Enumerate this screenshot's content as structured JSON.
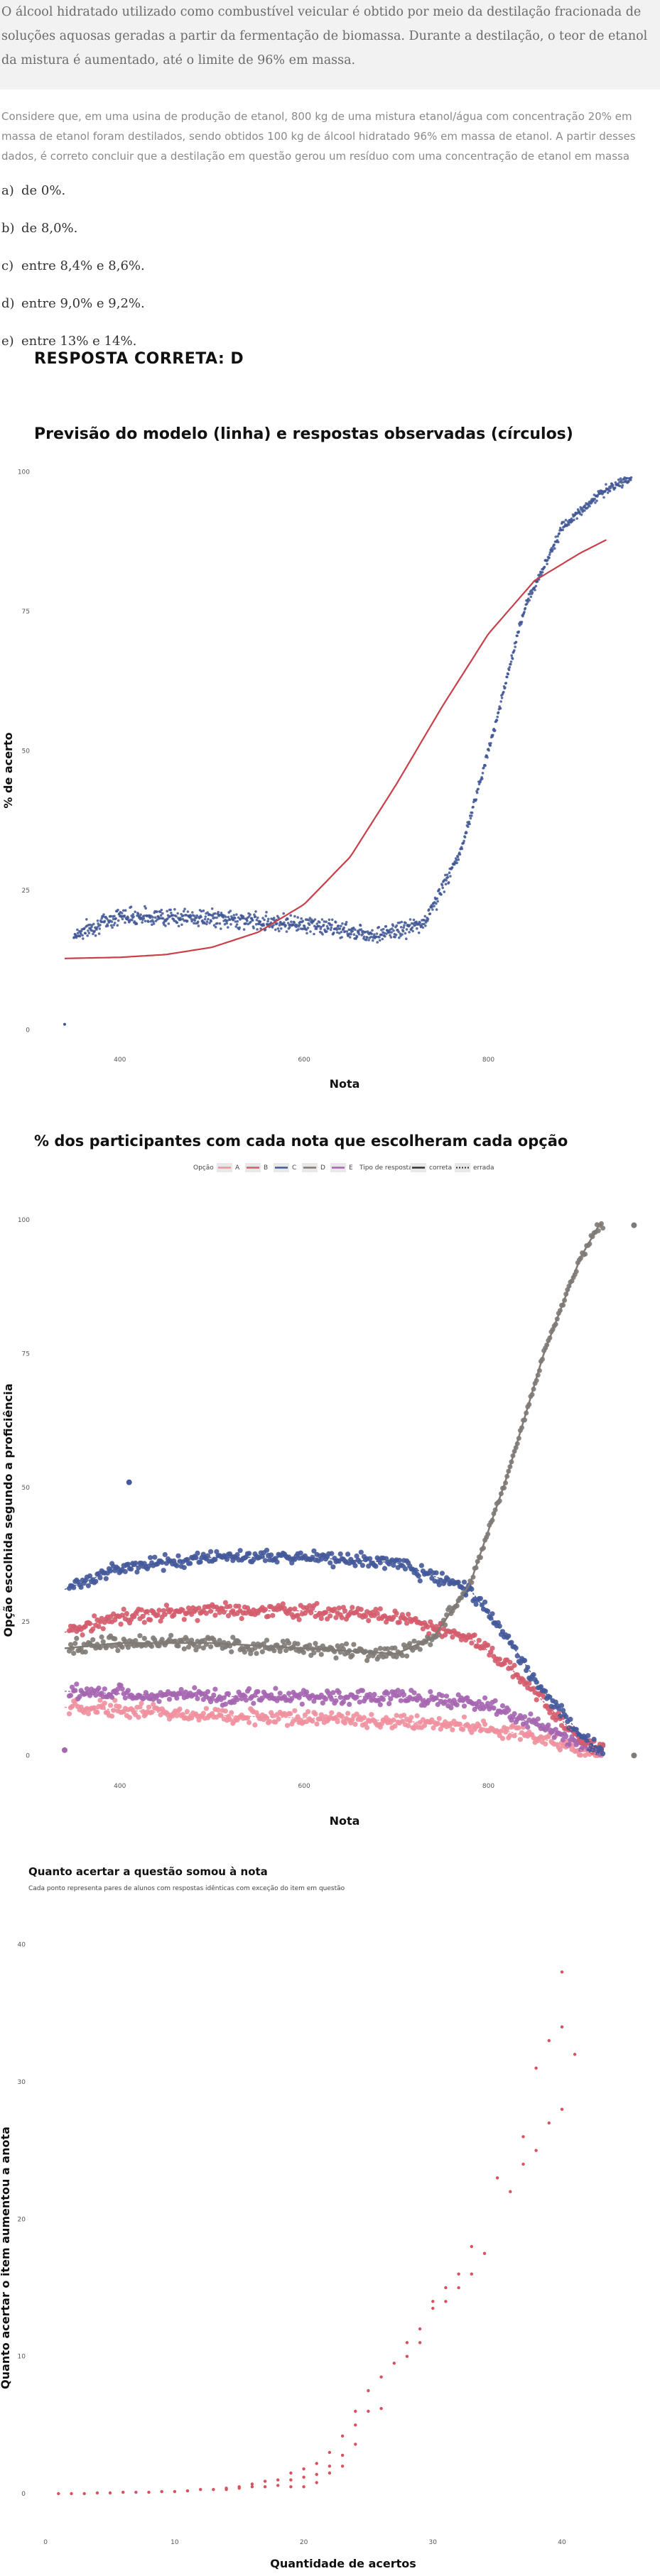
{
  "intro": {
    "text": "O álcool hidratado utilizado como combustível veicular é obtido por meio da destilação fracionada de soluções aquosas geradas a partir da fermentação de biomassa. Durante a destilação, o teor de etanol da mistura é aumentado, até o limite de 96% em massa."
  },
  "question": {
    "text": "Considere que, em uma usina de produção de etanol, 800 kg de uma mistura etanol/água com concentração 20% em massa de etanol foram destilados, sendo obtidos 100 kg de álcool hidratado 96% em massa de etanol. A partir desses dados, é correto concluir que a destilação em questão gerou um resíduo com uma concentração de etanol em massa"
  },
  "alternatives": [
    {
      "letter": "a)",
      "text": "de 0%."
    },
    {
      "letter": "b)",
      "text": "de 8,0%."
    },
    {
      "letter": "c)",
      "text": "entre 8,4% e 8,6%."
    },
    {
      "letter": "d)",
      "text": "entre 9,0% e 9,2%."
    },
    {
      "letter": "e)",
      "text": "entre 13% e 14%."
    }
  ],
  "answer": "RESPOSTA CORRETA: D",
  "colors": {
    "model_line": "#c8404a",
    "points_blue": "#3f5694",
    "A": "#f0909e",
    "B": "#d45c6c",
    "C": "#44599a",
    "D": "#7f7a75",
    "E": "#a565b0",
    "chart3_points": "#d9505e"
  },
  "chart_data": [
    {
      "type": "scatter",
      "title": "Previsão do modelo (linha) e respostas observadas (círculos)",
      "xlabel": "Nota",
      "ylabel": "% de acerto",
      "xticks": [
        400,
        600,
        800
      ],
      "yticks": [
        0,
        25,
        50,
        75,
        100
      ],
      "xlim": [
        330,
        960
      ],
      "ylim": [
        -3,
        102
      ],
      "grid": false,
      "model_line": {
        "x": [
          340,
          400,
          450,
          500,
          550,
          600,
          650,
          700,
          750,
          800,
          850,
          900,
          930
        ],
        "y": [
          12.8,
          13.0,
          13.5,
          14.8,
          17.5,
          22.5,
          31,
          44,
          58,
          71,
          80.5,
          85.5,
          88
        ]
      },
      "observed_summary": [
        {
          "x": 340,
          "y": 1
        },
        {
          "x": 350,
          "y": 17
        },
        {
          "x": 400,
          "y": 20.5
        },
        {
          "x": 500,
          "y": 20
        },
        {
          "x": 600,
          "y": 19
        },
        {
          "x": 680,
          "y": 17
        },
        {
          "x": 730,
          "y": 19
        },
        {
          "x": 770,
          "y": 32
        },
        {
          "x": 800,
          "y": 50
        },
        {
          "x": 840,
          "y": 76
        },
        {
          "x": 880,
          "y": 90
        },
        {
          "x": 920,
          "y": 96
        },
        {
          "x": 955,
          "y": 99
        }
      ]
    },
    {
      "type": "scatter",
      "title": "% dos participantes com cada nota que escolheram cada opção",
      "xlabel": "Nota",
      "ylabel": "Opção escolhida segundo a proficiência",
      "xticks": [
        400,
        600,
        800
      ],
      "yticks": [
        0,
        25,
        50,
        75,
        100
      ],
      "xlim": [
        330,
        960
      ],
      "ylim": [
        -3,
        102
      ],
      "legend": {
        "title_option": "Opção",
        "options": [
          "A",
          "B",
          "C",
          "D",
          "E"
        ],
        "title_type": "Tipo de resposta",
        "types": [
          "correta",
          "errada"
        ],
        "placement": "top-center"
      },
      "series": [
        {
          "name": "A",
          "x": [
            340,
            400,
            500,
            600,
            700,
            780,
            820,
            860,
            900,
            920
          ],
          "y": [
            9,
            8.5,
            7.5,
            7,
            6.5,
            5.5,
            4.5,
            3,
            1,
            0.3
          ]
        },
        {
          "name": "B",
          "x": [
            340,
            400,
            500,
            600,
            700,
            780,
            820,
            860,
            900,
            920
          ],
          "y": [
            23,
            26,
            27,
            27,
            26,
            22,
            17,
            10,
            3,
            0.8
          ]
        },
        {
          "name": "C",
          "x": [
            340,
            400,
            500,
            600,
            700,
            780,
            820,
            860,
            900,
            920
          ],
          "y": [
            31,
            35,
            37,
            37,
            36,
            31,
            22,
            12,
            4,
            1
          ]
        },
        {
          "name": "D",
          "x": [
            340,
            400,
            500,
            600,
            700,
            740,
            780,
            820,
            860,
            900,
            920
          ],
          "y": [
            20,
            21,
            21,
            20,
            19,
            22,
            32,
            52,
            75,
            93,
            99
          ]
        },
        {
          "name": "E",
          "x": [
            340,
            400,
            500,
            600,
            700,
            780,
            820,
            860,
            900,
            920
          ],
          "y": [
            12,
            11.5,
            11,
            11,
            11,
            10,
            8,
            5,
            2,
            0.5
          ]
        }
      ],
      "outliers": [
        {
          "series": "C",
          "x": 410,
          "y": 51
        },
        {
          "series": "D",
          "x": 958,
          "y": 99
        },
        {
          "series": "E",
          "x": 340,
          "y": 1
        },
        {
          "series": "D",
          "x": 958,
          "y": 0
        }
      ]
    },
    {
      "type": "scatter",
      "title": "Quanto acertar a questão somou à nota",
      "subtitle": "Cada ponto representa pares de alunos com respostas idênticas com exceção do item em questão",
      "xlabel": "Quantidade de acertos",
      "ylabel": "Quanto acertar o item aumentou a anota",
      "xticks": [
        0,
        10,
        20,
        30,
        40
      ],
      "yticks": [
        0,
        10,
        20,
        30,
        40
      ],
      "xlim": [
        -1,
        46
      ],
      "ylim": [
        -1.5,
        42
      ],
      "grid": false,
      "points": {
        "x": [
          1,
          2,
          3,
          4,
          5,
          6,
          7,
          8,
          9,
          10,
          11,
          12,
          13,
          14,
          14,
          15,
          15,
          16,
          16,
          17,
          17,
          18,
          18,
          19,
          19,
          19,
          20,
          20,
          20,
          21,
          21,
          21,
          22,
          22,
          22,
          23,
          23,
          23,
          24,
          24,
          24,
          25,
          25,
          26,
          26,
          27,
          28,
          28,
          29,
          29,
          30,
          30,
          31,
          31,
          32,
          32,
          33,
          33,
          34,
          35,
          36,
          37,
          37,
          38,
          38,
          39,
          39,
          40,
          40,
          40,
          41
        ],
        "y": [
          0,
          0,
          0,
          0.05,
          0.05,
          0.1,
          0.1,
          0.1,
          0.15,
          0.15,
          0.2,
          0.3,
          0.3,
          0.4,
          0.3,
          0.5,
          0.4,
          0.7,
          0.5,
          0.9,
          0.5,
          1,
          0.6,
          1.5,
          1,
          0.5,
          1.8,
          1.2,
          0.5,
          2.2,
          1.4,
          0.8,
          3,
          2,
          1.5,
          4.2,
          2.8,
          2,
          6,
          5,
          3.6,
          7.5,
          6,
          8.5,
          6.2,
          9.5,
          11,
          10,
          12,
          11,
          14,
          13.5,
          15,
          14,
          16,
          15,
          18,
          16,
          17.5,
          23,
          22,
          26,
          24,
          31,
          25,
          33,
          27,
          34,
          28,
          38,
          32
        ]
      }
    }
  ],
  "chart_labels": {
    "c1_xticks": [
      "400",
      "600",
      "800"
    ],
    "c1_yticks": [
      "0",
      "25",
      "50",
      "75",
      "100"
    ],
    "c2_xticks": [
      "400",
      "600",
      "800"
    ],
    "c2_yticks": [
      "0",
      "25",
      "50",
      "75",
      "100"
    ],
    "c3_xticks": [
      "0",
      "10",
      "20",
      "30",
      "40"
    ],
    "c3_yticks": [
      "0",
      "10",
      "20",
      "30",
      "40"
    ]
  }
}
